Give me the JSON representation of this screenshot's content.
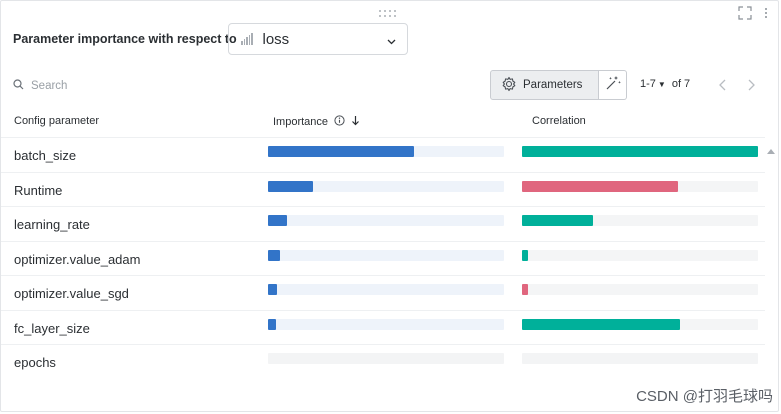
{
  "panel": {
    "title": "Parameter importance with respect to",
    "metric_select": {
      "value": "loss"
    }
  },
  "toolbar": {
    "search_placeholder": "Search",
    "parameters_label": "Parameters",
    "pager_range": "1-7",
    "pager_total": "of 7"
  },
  "table": {
    "columns": [
      "Config parameter",
      "Importance",
      "Correlation"
    ],
    "rows": [
      {
        "name": "batch_size",
        "importance": 0.62,
        "correlation": 1.0,
        "correlation_sign": "positive"
      },
      {
        "name": "Runtime",
        "importance": 0.19,
        "correlation": 0.66,
        "correlation_sign": "negative"
      },
      {
        "name": "learning_rate",
        "importance": 0.08,
        "correlation": 0.3,
        "correlation_sign": "positive"
      },
      {
        "name": "optimizer.value_adam",
        "importance": 0.05,
        "correlation": 0.025,
        "correlation_sign": "positive"
      },
      {
        "name": "optimizer.value_sgd",
        "importance": 0.04,
        "correlation": 0.025,
        "correlation_sign": "negative"
      },
      {
        "name": "fc_layer_size",
        "importance": 0.035,
        "correlation": 0.67,
        "correlation_sign": "positive"
      },
      {
        "name": "epochs",
        "importance": null,
        "correlation": null,
        "correlation_sign": null
      }
    ]
  },
  "colors": {
    "importance_fill": "#3274c8",
    "positive": "#00b09a",
    "negative": "#e0667e"
  },
  "watermark": "CSDN @打羽毛球吗",
  "icons": [
    "drag-handle-icon",
    "expand-icon",
    "kebab-menu-icon",
    "bar-chart-icon",
    "chevron-down-icon",
    "search-icon",
    "gear-icon",
    "magic-wand-icon",
    "caret-down-icon",
    "chevron-left-icon",
    "chevron-right-icon",
    "info-icon",
    "sort-arrow-down-icon",
    "scroll-up-icon"
  ]
}
